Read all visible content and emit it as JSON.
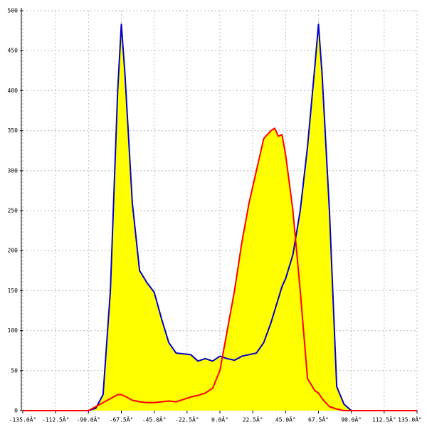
{
  "chart_data": {
    "type": "area",
    "x": [
      -135,
      -90,
      -85,
      -80,
      -75,
      -70,
      -67.5,
      -65,
      -60,
      -55,
      -50,
      -45,
      -40,
      -35,
      -30,
      -25,
      -20,
      -15,
      -10,
      -5,
      0,
      5,
      10,
      15,
      20,
      25,
      30,
      35,
      37.5,
      40,
      42.5,
      45,
      50,
      55,
      60,
      65,
      67.5,
      70,
      75,
      80,
      85,
      90,
      135
    ],
    "series": [
      {
        "color": "#0000cc",
        "fill": "#ffff00",
        "values": [
          0,
          0,
          3,
          20,
          150,
          400,
          483,
          420,
          260,
          175,
          160,
          148,
          115,
          85,
          72,
          71,
          70,
          62,
          65,
          62,
          68,
          65,
          63,
          68,
          70,
          72,
          85,
          110,
          125,
          140,
          155,
          165,
          195,
          250,
          330,
          430,
          483,
          420,
          250,
          30,
          8,
          0,
          0
        ]
      },
      {
        "color": "#ff0000",
        "fill": "#ffff00",
        "values": [
          0,
          0,
          5,
          10,
          15,
          20,
          20,
          18,
          13,
          11,
          10,
          10,
          11,
          12,
          11,
          14,
          17,
          19,
          22,
          28,
          50,
          100,
          150,
          210,
          260,
          300,
          340,
          350,
          353,
          343,
          345,
          320,
          250,
          150,
          40,
          25,
          22,
          15,
          5,
          2,
          0,
          0,
          0
        ]
      }
    ],
    "xlim": [
      -135,
      135
    ],
    "ylim": [
      0,
      500
    ],
    "xticks": [
      {
        "value": -135,
        "label": "-135.0Â°"
      },
      {
        "value": -112.5,
        "label": "-112.5Â°"
      },
      {
        "value": -90,
        "label": "-90.0Â°"
      },
      {
        "value": -67.5,
        "label": "-67.5Â°"
      },
      {
        "value": -45,
        "label": "-45.0Â°"
      },
      {
        "value": -22.5,
        "label": "-22.5Â°"
      },
      {
        "value": 0,
        "label": "0.0Â°"
      },
      {
        "value": 22.5,
        "label": "22.5Â°"
      },
      {
        "value": 45,
        "label": "45.0Â°"
      },
      {
        "value": 67.5,
        "label": "67.5Â°"
      },
      {
        "value": 90,
        "label": "90.0Â°"
      },
      {
        "value": 112.5,
        "label": "112.5Â°"
      },
      {
        "value": 135,
        "label": "135.0Â°"
      }
    ],
    "yticks": [
      0,
      50,
      100,
      150,
      200,
      250,
      300,
      350,
      400,
      450,
      500
    ],
    "grid": true
  }
}
